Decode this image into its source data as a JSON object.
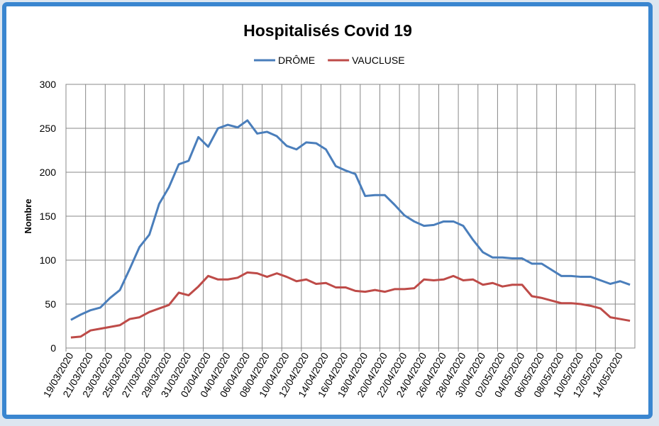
{
  "chart_data": {
    "type": "line",
    "title": "Hospitalisés Covid 19",
    "y_label": "Nombre",
    "categories": [
      "19/03/2020",
      null,
      "21/03/2020",
      null,
      "23/03/2020",
      null,
      "25/03/2020",
      null,
      "27/03/2020",
      null,
      "29/03/2020",
      null,
      "31/03/2020",
      null,
      "02/04/2020",
      null,
      "04/04/2020",
      null,
      "06/04/2020",
      null,
      "08/04/2020",
      null,
      "10/04/2020",
      null,
      "12/04/2020",
      null,
      "14/04/2020",
      null,
      "16/04/2020",
      null,
      "18/04/2020",
      null,
      "20/04/2020",
      null,
      "22/04/2020",
      null,
      "24/04/2020",
      null,
      "26/04/2020",
      null,
      "28/04/2020",
      null,
      "30/04/2020",
      null,
      "02/05/2020",
      null,
      "04/05/2020",
      null,
      "06/05/2020",
      null,
      "08/05/2020",
      null,
      "10/05/2020",
      null,
      "12/05/2020",
      null,
      "14/05/2020",
      null
    ],
    "series": [
      {
        "name": "DRÔME",
        "color": "#4a7ebb",
        "values": [
          32,
          38,
          43,
          46,
          57,
          66,
          90,
          115,
          129,
          164,
          183,
          209,
          213,
          240,
          229,
          250,
          254,
          251,
          259,
          244,
          246,
          241,
          230,
          226,
          234,
          233,
          226,
          207,
          202,
          198,
          173,
          174,
          174,
          163,
          151,
          144,
          139,
          140,
          144,
          144,
          139,
          123,
          109,
          103,
          103,
          102,
          102,
          96,
          96,
          89,
          82,
          82,
          81,
          81,
          77,
          73,
          76,
          72
        ]
      },
      {
        "name": "VAUCLUSE",
        "color": "#be4b48",
        "values": [
          12,
          13,
          20,
          22,
          24,
          26,
          33,
          35,
          41,
          45,
          49,
          63,
          60,
          70,
          82,
          78,
          78,
          80,
          86,
          85,
          81,
          85,
          81,
          76,
          78,
          73,
          74,
          69,
          69,
          65,
          64,
          66,
          64,
          67,
          67,
          68,
          78,
          77,
          78,
          82,
          77,
          78,
          72,
          74,
          70,
          72,
          72,
          59,
          57,
          54,
          51,
          51,
          50,
          48,
          45,
          35,
          33,
          31
        ]
      }
    ],
    "ylim": [
      0,
      300
    ],
    "yticks": [
      0,
      50,
      100,
      150,
      200,
      250,
      300
    ],
    "grid": true,
    "legend": "top"
  }
}
